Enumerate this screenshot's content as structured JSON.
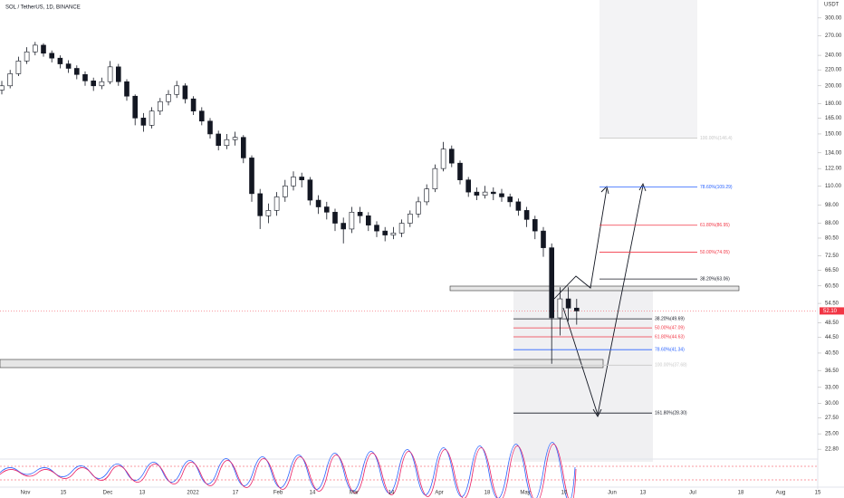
{
  "chart_data": {
    "type": "candlestick",
    "title": "SOL / TetherUS, 1D, BINANCE",
    "y_unit": "USDT",
    "log_scale": true,
    "ylim": [
      21.5,
      334
    ],
    "yticks": [
      {
        "value": 300,
        "label": "300.00"
      },
      {
        "value": 270,
        "label": "270.00"
      },
      {
        "value": 240,
        "label": "240.00"
      },
      {
        "value": 220,
        "label": "220.00"
      },
      {
        "value": 200,
        "label": "200.00"
      },
      {
        "value": 180,
        "label": "180.00"
      },
      {
        "value": 165,
        "label": "165.00"
      },
      {
        "value": 150,
        "label": "150.00"
      },
      {
        "value": 134,
        "label": "134.00"
      },
      {
        "value": 122,
        "label": "122.00"
      },
      {
        "value": 110,
        "label": "110.00"
      },
      {
        "value": 98,
        "label": "98.00"
      },
      {
        "value": 88,
        "label": "88.00"
      },
      {
        "value": 80.5,
        "label": "80.50"
      },
      {
        "value": 72.5,
        "label": "72.50"
      },
      {
        "value": 66.5,
        "label": "66.50"
      },
      {
        "value": 60.5,
        "label": "60.50"
      },
      {
        "value": 54.5,
        "label": "54.50"
      },
      {
        "value": 48.5,
        "label": "48.50"
      },
      {
        "value": 44.5,
        "label": "44.50"
      },
      {
        "value": 40.5,
        "label": "40.50"
      },
      {
        "value": 36.5,
        "label": "36.50"
      },
      {
        "value": 33,
        "label": "33.00"
      },
      {
        "value": 30,
        "label": "30.00"
      },
      {
        "value": 27.5,
        "label": "27.50"
      },
      {
        "value": 25,
        "label": "25.00"
      },
      {
        "value": 22.8,
        "label": "22.80"
      }
    ],
    "xtick_labels": [
      "Nov",
      "15",
      "Dec",
      "13",
      "2022",
      "17",
      "Feb",
      "14",
      "Mar",
      "14",
      "Apr",
      "18",
      "May",
      "16",
      "Jun",
      "13",
      "Jul",
      "18",
      "Aug",
      "15"
    ],
    "last_price": {
      "value": 52.1,
      "label": "52.10",
      "color": "#f23645"
    },
    "up_color": "#ffffff",
    "down_color": "#131722",
    "open": [
      195,
      200,
      215,
      232,
      245,
      255,
      243,
      236,
      228,
      222,
      214,
      206,
      200,
      205,
      224,
      205,
      188,
      165,
      158,
      172,
      182,
      190,
      200,
      185,
      172,
      162,
      150,
      140,
      145,
      147,
      130,
      105,
      92,
      95,
      103,
      110,
      116,
      114,
      101,
      97,
      94,
      88,
      85,
      94,
      92,
      87,
      84,
      82,
      83,
      88,
      93,
      100,
      108,
      122,
      137,
      126,
      114,
      106,
      104,
      106,
      105,
      103,
      100,
      95,
      90,
      84,
      76,
      50,
      56,
      53
    ],
    "high": [
      206,
      220,
      238,
      252,
      260,
      258,
      247,
      240,
      233,
      226,
      218,
      210,
      210,
      232,
      228,
      208,
      190,
      170,
      176,
      186,
      195,
      206,
      203,
      188,
      176,
      165,
      153,
      150,
      152,
      149,
      132,
      108,
      99,
      106,
      114,
      120,
      119,
      116,
      104,
      100,
      96,
      91,
      97,
      97,
      94,
      89,
      86,
      86,
      90,
      95,
      103,
      111,
      125,
      143,
      140,
      128,
      116,
      109,
      110,
      109,
      108,
      105,
      102,
      97,
      92,
      86,
      78,
      60,
      60,
      56
    ],
    "low": [
      190,
      197,
      212,
      228,
      240,
      238,
      230,
      222,
      216,
      208,
      200,
      194,
      196,
      202,
      200,
      183,
      158,
      152,
      155,
      168,
      178,
      186,
      180,
      168,
      158,
      146,
      136,
      137,
      140,
      126,
      100,
      85,
      88,
      92,
      100,
      107,
      109,
      98,
      93,
      90,
      84,
      78,
      83,
      88,
      84,
      81,
      79,
      80,
      81,
      86,
      91,
      98,
      106,
      120,
      123,
      111,
      103,
      101,
      102,
      101,
      100,
      97,
      92,
      86,
      80,
      72,
      38,
      45,
      49,
      48
    ],
    "close": [
      200,
      215,
      232,
      245,
      255,
      243,
      236,
      228,
      222,
      214,
      206,
      200,
      205,
      224,
      205,
      188,
      165,
      158,
      172,
      182,
      190,
      200,
      185,
      172,
      162,
      150,
      140,
      145,
      147,
      130,
      105,
      92,
      95,
      103,
      110,
      116,
      114,
      101,
      97,
      94,
      88,
      85,
      94,
      92,
      87,
      84,
      82,
      83,
      88,
      93,
      100,
      108,
      122,
      137,
      126,
      114,
      106,
      104,
      106,
      105,
      103,
      100,
      95,
      90,
      84,
      76,
      50,
      56,
      53,
      52.1
    ],
    "fib_levels": [
      {
        "label": "100.00%(146.4)",
        "value": 146.4,
        "color": "#c8c8c8"
      },
      {
        "label": "78.60%(109.29)",
        "value": 109.29,
        "color": "#2962ff"
      },
      {
        "label": "61.80%(86.95)",
        "value": 86.95,
        "color": "#f23645"
      },
      {
        "label": "50.00%(74.05)",
        "value": 74.05,
        "color": "#f23645"
      },
      {
        "label": "38.20%(63.06)",
        "value": 63.06,
        "color": "#131722"
      },
      {
        "label": "38.20%(49.69)",
        "value": 49.69,
        "color": "#131722"
      },
      {
        "label": "50.00%(47.09)",
        "value": 47.09,
        "color": "#f23645"
      },
      {
        "label": "61.80%(44.63)",
        "value": 44.63,
        "color": "#f23645"
      },
      {
        "label": "78.60%(41.34)",
        "value": 41.34,
        "color": "#2962ff"
      },
      {
        "label": "100.00%(37.68)",
        "value": 37.68,
        "color": "#c8c8c8"
      },
      {
        "label": "161.80%(28.30)",
        "value": 28.3,
        "color": "#131722"
      }
    ]
  }
}
